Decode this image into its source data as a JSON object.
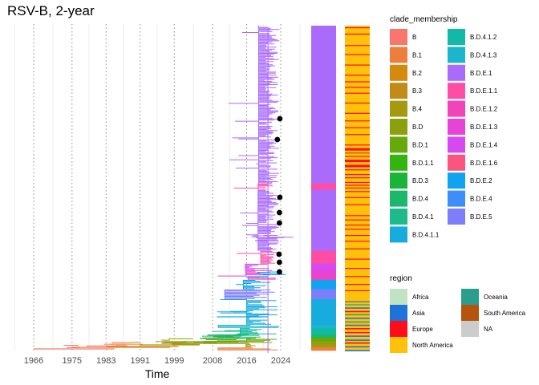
{
  "chart_data": {
    "type": "line",
    "title": "RSV-B, 2-year",
    "xlabel": "Time",
    "ylabel": "",
    "x_ticks": [
      "1966",
      "1975",
      "1983",
      "1991",
      "1999",
      "2008",
      "2016",
      "2024"
    ],
    "xlim": [
      1966,
      2024
    ],
    "grid": true,
    "legend_position": "right",
    "clade_legend": {
      "title": "clade_membership",
      "entries": [
        {
          "label": "B",
          "color": "#F8766D"
        },
        {
          "label": "B.1",
          "color": "#EE7E3B"
        },
        {
          "label": "B.2",
          "color": "#D58A0F"
        },
        {
          "label": "B.3",
          "color": "#BE8C17"
        },
        {
          "label": "B.4",
          "color": "#A39A12"
        },
        {
          "label": "B.D",
          "color": "#8CA00E"
        },
        {
          "label": "B.D.1",
          "color": "#66A90A"
        },
        {
          "label": "B.D.1.1",
          "color": "#34B412"
        },
        {
          "label": "B.D.3",
          "color": "#1AB538"
        },
        {
          "label": "B.D.4",
          "color": "#19B86A"
        },
        {
          "label": "B.D.4.1",
          "color": "#1DBB8C"
        },
        {
          "label": "B.D.4.1.1",
          "color": "#17ABDE"
        },
        {
          "label": "B.D.4.1.2",
          "color": "#13B9A8"
        },
        {
          "label": "B.D.4.1.3",
          "color": "#1CB6CC"
        },
        {
          "label": "B.D.E.1",
          "color": "#AA6BFA"
        },
        {
          "label": "B.D.E.1.1",
          "color": "#FF4DA6"
        },
        {
          "label": "B.D.E.1.2",
          "color": "#F243B9"
        },
        {
          "label": "B.D.E.1.3",
          "color": "#E743D6"
        },
        {
          "label": "B.D.E.1.4",
          "color": "#D648F0"
        },
        {
          "label": "B.D.E.1.6",
          "color": "#FC5481"
        },
        {
          "label": "B.D.E.2",
          "color": "#11A3F0"
        },
        {
          "label": "B.D.E.4",
          "color": "#3D8DFA"
        },
        {
          "label": "B.D.E.5",
          "color": "#7E7DFA"
        }
      ]
    },
    "region_legend": {
      "title": "region",
      "entries": [
        {
          "label": "Africa",
          "color": "#C2E2C4"
        },
        {
          "label": "Asia",
          "color": "#1E73DA"
        },
        {
          "label": "Europe",
          "color": "#FF0D1A"
        },
        {
          "label": "North America",
          "color": "#FFC10A"
        },
        {
          "label": "Oceania",
          "color": "#2A9E8C"
        },
        {
          "label": "South America",
          "color": "#B5530F"
        },
        {
          "label": "NA",
          "color": "#CCCCCC"
        }
      ]
    },
    "clade_strip": [
      {
        "clade": "B.D.E.1",
        "fraction": 0.49
      },
      {
        "clade": "B.D.E.1.1",
        "fraction": 0.02
      },
      {
        "clade": "B.D.E.1",
        "fraction": 0.19
      },
      {
        "clade": "B.D.E.1.1",
        "fraction": 0.04
      },
      {
        "clade": "B.D.E.1.4",
        "fraction": 0.02
      },
      {
        "clade": "B.D.E.1.3",
        "fraction": 0.02
      },
      {
        "clade": "B.D.E.1.2",
        "fraction": 0.01
      },
      {
        "clade": "B.D.E.2",
        "fraction": 0.03
      },
      {
        "clade": "B.D.E.5",
        "fraction": 0.03
      },
      {
        "clade": "B.D.4.1.1",
        "fraction": 0.08
      },
      {
        "clade": "B.D.4.1.3",
        "fraction": 0.01
      },
      {
        "clade": "B.D.4.1.2",
        "fraction": 0.02
      },
      {
        "clade": "B.D.4",
        "fraction": 0.01
      },
      {
        "clade": "B.D.1",
        "fraction": 0.01
      },
      {
        "clade": "B.D",
        "fraction": 0.01
      },
      {
        "clade": "B.4",
        "fraction": 0.01
      },
      {
        "clade": "B.1",
        "fraction": 0.01
      }
    ],
    "tip_markers_year": [
      2023.8,
      2023.2,
      2023.8,
      2023.7,
      2023.7,
      2023.6,
      2023.7,
      2023.7
    ]
  }
}
